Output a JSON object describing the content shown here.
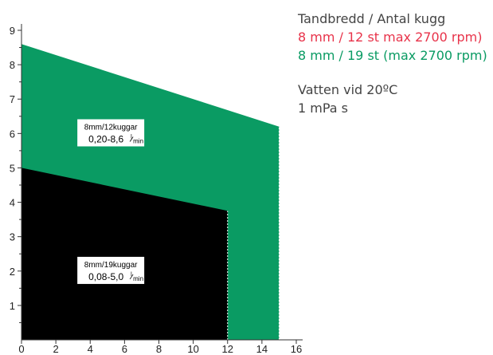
{
  "chart_data": {
    "type": "area",
    "xlim": [
      0,
      16
    ],
    "ylim": [
      0,
      9
    ],
    "x_ticks": [
      0,
      2,
      4,
      6,
      8,
      10,
      12,
      14,
      16
    ],
    "y_ticks": [
      1,
      2,
      3,
      4,
      5,
      6,
      7,
      8,
      9
    ],
    "regions": [
      {
        "color": "#0a9b63",
        "polygon": [
          [
            0,
            0
          ],
          [
            0,
            8.6
          ],
          [
            15,
            6.2
          ],
          [
            15,
            0
          ]
        ],
        "label_line1": "8mm/12kuggar",
        "label_line2": "0,20-8,6",
        "label_unit_num": "l",
        "label_unit_den": "min",
        "label_at": [
          5.2,
          5.95
        ]
      },
      {
        "color": "#000000",
        "polygon": [
          [
            0,
            0
          ],
          [
            0,
            5.0
          ],
          [
            12,
            3.75
          ],
          [
            12,
            0
          ]
        ],
        "label_line1": "8mm/19kuggar",
        "label_line2": "0,08-5,0",
        "label_unit_num": "l",
        "label_unit_den": "min",
        "label_at": [
          5.2,
          1.95
        ]
      }
    ],
    "guide_lines": [
      [
        12,
        0,
        12,
        3.75
      ],
      [
        15,
        0,
        15,
        6.2
      ]
    ]
  },
  "legend": {
    "header": "Tandbredd / Antal kugg",
    "series_red": "8 mm / 12 st max 2700 rpm)",
    "series_green": "8 mm / 19 st (max 2700 rpm)",
    "fluid": "Vatten vid 20ºC",
    "viscosity": "1 mPa s",
    "red_color": "#e8334a",
    "green_color": "#0a9b63",
    "text_color": "#444444"
  }
}
